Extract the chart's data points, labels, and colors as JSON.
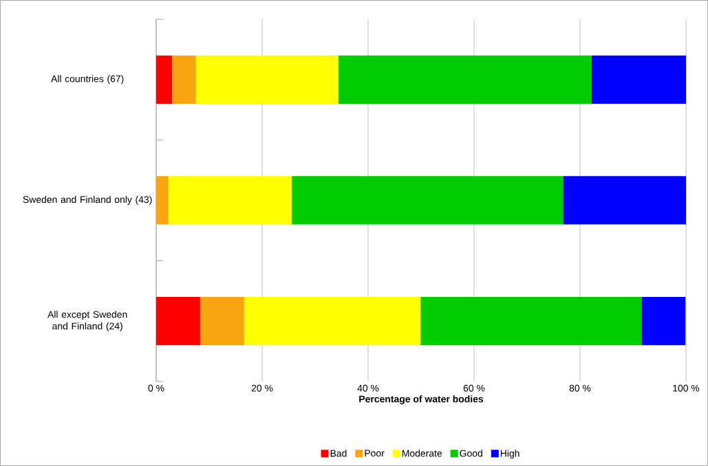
{
  "chart_data": {
    "type": "bar",
    "orientation": "horizontal",
    "stacked": true,
    "categories": [
      "All countries (67)",
      "Sweden and Finland only (43)",
      "All except Sweden and Finland (24)"
    ],
    "series": [
      {
        "name": "Bad",
        "color": "#ff0000",
        "values": [
          3.0,
          0,
          8.3
        ]
      },
      {
        "name": "Poor",
        "color": "#f8a50f",
        "values": [
          4.5,
          2.3,
          8.3
        ]
      },
      {
        "name": "Moderate",
        "color": "#ffff00",
        "values": [
          26.9,
          23.3,
          33.3
        ]
      },
      {
        "name": "Good",
        "color": "#00cc00",
        "values": [
          47.8,
          51.2,
          41.7
        ]
      },
      {
        "name": "High",
        "color": "#0000ff",
        "values": [
          17.9,
          23.3,
          8.3
        ]
      }
    ],
    "xlim": [
      0,
      100
    ],
    "xticks": [
      {
        "value": 0,
        "label": "0 %"
      },
      {
        "value": 20,
        "label": "20 %"
      },
      {
        "value": 40,
        "label": "40 %"
      },
      {
        "value": 60,
        "label": "60 %"
      },
      {
        "value": 80,
        "label": "80 %"
      },
      {
        "value": 100,
        "label": "100 %"
      }
    ],
    "xlabel": "Percentage of water bodies",
    "grid": "x",
    "legend": "bottom"
  }
}
